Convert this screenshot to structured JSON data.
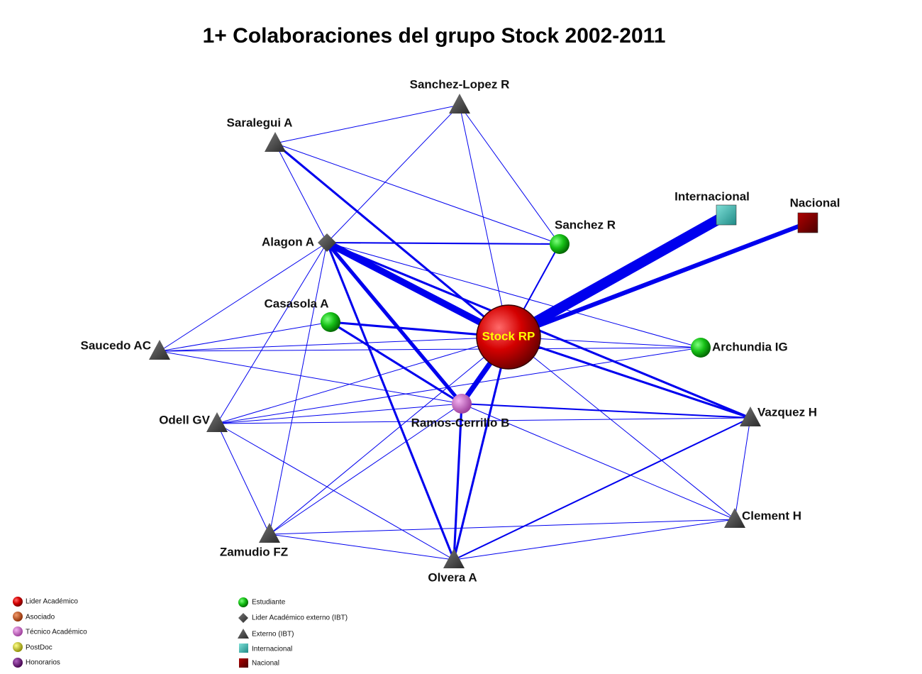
{
  "title": "1+ Colaboraciones del grupo Stock 2002-2011",
  "nodes": [
    {
      "label": "Stock RP",
      "kind": "lider"
    },
    {
      "label": "Alagon A",
      "kind": "lider-externo"
    },
    {
      "label": "Sanchez-Lopez R",
      "kind": "externo"
    },
    {
      "label": "Saralegui A",
      "kind": "externo"
    },
    {
      "label": "Sanchez R",
      "kind": "estudiante"
    },
    {
      "label": "Internacional",
      "kind": "internacional"
    },
    {
      "label": "Nacional",
      "kind": "nacional"
    },
    {
      "label": "Casasola A",
      "kind": "estudiante"
    },
    {
      "label": "Archundia IG",
      "kind": "estudiante"
    },
    {
      "label": "Saucedo AC",
      "kind": "externo"
    },
    {
      "label": "Odell GV",
      "kind": "externo"
    },
    {
      "label": "Ramos-Cerrillo B",
      "kind": "tecnico"
    },
    {
      "label": "Vazquez H",
      "kind": "externo"
    },
    {
      "label": "Clement H",
      "kind": "externo"
    },
    {
      "label": "Zamudio FZ",
      "kind": "externo"
    },
    {
      "label": "Olvera A",
      "kind": "externo"
    }
  ],
  "edges": [
    {
      "from": 0,
      "to": 5,
      "weight": 14
    },
    {
      "from": 0,
      "to": 6,
      "weight": 6
    },
    {
      "from": 0,
      "to": 1,
      "weight": 9
    },
    {
      "from": 0,
      "to": 11,
      "weight": 7
    },
    {
      "from": 0,
      "to": 7,
      "weight": 3
    },
    {
      "from": 0,
      "to": 4,
      "weight": 2
    },
    {
      "from": 0,
      "to": 15,
      "weight": 3
    },
    {
      "from": 0,
      "to": 12,
      "weight": 3
    },
    {
      "from": 0,
      "to": 3,
      "weight": 3
    },
    {
      "from": 0,
      "to": 8,
      "weight": 1
    },
    {
      "from": 0,
      "to": 9,
      "weight": 1
    },
    {
      "from": 0,
      "to": 13,
      "weight": 1
    },
    {
      "from": 0,
      "to": 2,
      "weight": 1
    },
    {
      "from": 0,
      "to": 10,
      "weight": 1
    },
    {
      "from": 0,
      "to": 14,
      "weight": 1
    },
    {
      "from": 1,
      "to": 11,
      "weight": 5
    },
    {
      "from": 1,
      "to": 15,
      "weight": 3
    },
    {
      "from": 1,
      "to": 4,
      "weight": 2
    },
    {
      "from": 1,
      "to": 2,
      "weight": 1
    },
    {
      "from": 1,
      "to": 3,
      "weight": 1
    },
    {
      "from": 1,
      "to": 9,
      "weight": 1
    },
    {
      "from": 1,
      "to": 10,
      "weight": 1
    },
    {
      "from": 1,
      "to": 14,
      "weight": 1
    },
    {
      "from": 1,
      "to": 12,
      "weight": 3
    },
    {
      "from": 1,
      "to": 8,
      "weight": 1
    },
    {
      "from": 3,
      "to": 2,
      "weight": 1
    },
    {
      "from": 3,
      "to": 4,
      "weight": 1
    },
    {
      "from": 2,
      "to": 4,
      "weight": 1
    },
    {
      "from": 7,
      "to": 11,
      "weight": 3
    },
    {
      "from": 7,
      "to": 9,
      "weight": 1
    },
    {
      "from": 11,
      "to": 12,
      "weight": 2
    },
    {
      "from": 11,
      "to": 15,
      "weight": 3
    },
    {
      "from": 11,
      "to": 9,
      "weight": 1
    },
    {
      "from": 11,
      "to": 10,
      "weight": 1
    },
    {
      "from": 11,
      "to": 14,
      "weight": 1
    },
    {
      "from": 11,
      "to": 13,
      "weight": 1
    },
    {
      "from": 15,
      "to": 12,
      "weight": 2
    },
    {
      "from": 15,
      "to": 10,
      "weight": 1
    },
    {
      "from": 15,
      "to": 14,
      "weight": 1
    },
    {
      "from": 15,
      "to": 13,
      "weight": 1
    },
    {
      "from": 12,
      "to": 13,
      "weight": 1
    },
    {
      "from": 10,
      "to": 12,
      "weight": 1
    },
    {
      "from": 13,
      "to": 14,
      "weight": 1
    },
    {
      "from": 10,
      "to": 14,
      "weight": 1
    },
    {
      "from": 9,
      "to": 8,
      "weight": 1
    },
    {
      "from": 10,
      "to": 8,
      "weight": 1
    }
  ],
  "legend": [
    "Lider Académico",
    "Asociado",
    "Técnico Académico",
    "PostDoc",
    "Honorarios",
    "Estudiante",
    "Lider Académico externo (IBT)",
    "Externo (IBT)",
    "Internacional",
    "Nacional"
  ]
}
